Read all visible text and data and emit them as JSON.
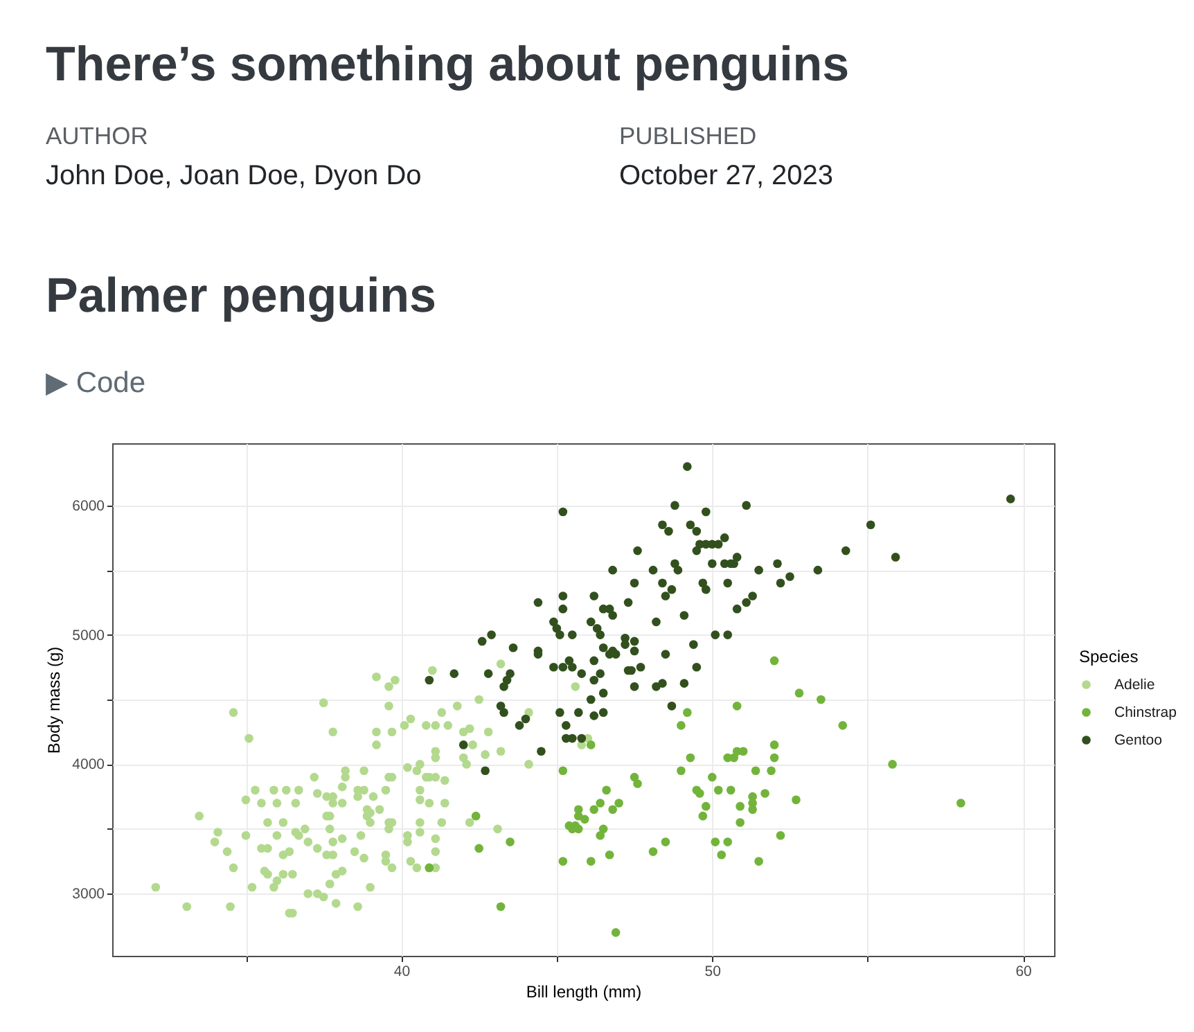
{
  "chart_data": {
    "type": "scatter",
    "title": "There’s something about penguins",
    "subtitle": "Palmer penguins",
    "annotations": [
      "AUTHOR",
      "John Doe, Joan Doe, Dyon Do",
      "PUBLISHED",
      "October 27, 2023",
      "▶ Code"
    ],
    "xlabel": "Bill length (mm)",
    "ylabel": "Body mass (g)",
    "legend_title": "Species",
    "legend": "right",
    "grid": true,
    "marker": "circle",
    "xlim": [
      30.7,
      61.0
    ],
    "ylim": [
      2520,
      6480
    ],
    "xticks": [
      {
        "value": 35,
        "label": null
      },
      40,
      {
        "value": 45,
        "label": null
      },
      50,
      {
        "value": 55,
        "label": null
      },
      60
    ],
    "yticks": [
      3000,
      {
        "value": 3500,
        "label": null
      },
      4000,
      {
        "value": 4500,
        "label": null
      },
      5000,
      {
        "value": 5500,
        "label": null
      },
      6000
    ],
    "series": [
      {
        "name": "Adelie",
        "color": "#b3d98e",
        "x": [
          32.1,
          33.1,
          34.5,
          33.5,
          34.1,
          34.0,
          34.4,
          34.6,
          34.6,
          35.1,
          35.0,
          35.0,
          35.2,
          35.3,
          35.5,
          35.9,
          36.0,
          36.3,
          36.6,
          36.7,
          35.7,
          36.2,
          35.5,
          35.7,
          36.0,
          36.2,
          36.4,
          35.6,
          35.7,
          36.0,
          35.9,
          36.2,
          36.5,
          36.4,
          36.5,
          36.6,
          36.7,
          36.9,
          37.0,
          37.2,
          37.3,
          37.3,
          37.0,
          37.3,
          37.5,
          37.5,
          37.8,
          37.6,
          37.8,
          37.8,
          37.6,
          37.7,
          37.7,
          37.8,
          37.6,
          37.8,
          38.1,
          38.1,
          38.2,
          38.2,
          38.1,
          37.9,
          38.1,
          37.7,
          37.9,
          38.6,
          38.6,
          38.8,
          38.8,
          38.7,
          38.5,
          38.8,
          38.6,
          39.0,
          39.1,
          38.9,
          39.0,
          38.9,
          39.0,
          39.3,
          39.5,
          39.6,
          39.7,
          39.6,
          39.7,
          39.6,
          39.5,
          39.5,
          39.7,
          39.2,
          39.6,
          39.8,
          39.6,
          39.2,
          39.2,
          39.7,
          40.1,
          40.3,
          40.2,
          40.5,
          40.6,
          40.2,
          40.2,
          40.3,
          40.5,
          40.6,
          40.6,
          40.6,
          40.6,
          41.3,
          41.8,
          42.5,
          40.8,
          41.1,
          41.5,
          42.0,
          42.2,
          42.8,
          42.3,
          41.1,
          41.1,
          42.0,
          42.1,
          42.7,
          43.2,
          44.1,
          44.1,
          45.6,
          45.8,
          46.0,
          40.8,
          40.9,
          41.1,
          41.4,
          40.9,
          41.4,
          41.3,
          41.1,
          41.1,
          42.2,
          43.1,
          40.9,
          41.1,
          41.0,
          43.2
        ],
        "values": [
          3050,
          2900,
          2900,
          3600,
          3475,
          3400,
          3325,
          3200,
          4400,
          4200,
          3725,
          3450,
          3050,
          3800,
          3700,
          3800,
          3700,
          3800,
          3700,
          3800,
          3550,
          3550,
          3350,
          3350,
          3450,
          3300,
          3325,
          3175,
          3150,
          3100,
          3050,
          3150,
          3150,
          2850,
          2850,
          3475,
          3450,
          3500,
          3400,
          3900,
          3775,
          3350,
          3000,
          3000,
          2975,
          4475,
          4250,
          3750,
          3750,
          3700,
          3600,
          3600,
          3500,
          3400,
          3300,
          3300,
          3825,
          3700,
          3950,
          3900,
          3425,
          3150,
          3175,
          3075,
          2925,
          3800,
          3750,
          3800,
          3950,
          3450,
          3325,
          3275,
          2900,
          3050,
          3750,
          3650,
          3625,
          3600,
          3550,
          3650,
          3800,
          3900,
          3900,
          3550,
          3550,
          3500,
          3300,
          3250,
          3200,
          4675,
          4600,
          4650,
          4450,
          4250,
          4150,
          4250,
          4300,
          4350,
          3975,
          3950,
          4000,
          3450,
          3400,
          3250,
          3200,
          3800,
          3725,
          3550,
          3475,
          4400,
          4450,
          4500,
          4300,
          4300,
          4300,
          4250,
          4275,
          4250,
          4150,
          4100,
          4050,
          4050,
          4000,
          4075,
          4100,
          4400,
          4000,
          4600,
          4150,
          4200,
          3900,
          3900,
          3900,
          3875,
          3700,
          3700,
          3550,
          3425,
          3325,
          3550,
          3500,
          3200,
          3200,
          4725,
          4775
        ]
      },
      {
        "name": "Chinstrap",
        "color": "#72b43b",
        "x": [
          40.9,
          42.4,
          42.5,
          43.5,
          43.2,
          45.2,
          45.2,
          45.4,
          45.5,
          45.6,
          45.7,
          45.7,
          45.7,
          45.9,
          46.1,
          46.2,
          46.4,
          46.5,
          46.4,
          46.6,
          46.7,
          46.8,
          47.0,
          46.9,
          47.5,
          47.6,
          48.1,
          48.5,
          49.0,
          49.2,
          49.0,
          49.3,
          49.5,
          49.6,
          49.8,
          49.7,
          50.0,
          50.1,
          50.2,
          46.1,
          52.0,
          52.8,
          53.5,
          50.8,
          54.2,
          55.8,
          58.0,
          52.0,
          52.0,
          50.5,
          50.7,
          50.8,
          51.0,
          51.4,
          51.9,
          50.6,
          51.7,
          51.3,
          51.3,
          51.3,
          50.9,
          52.7,
          50.9,
          50.5,
          50.3,
          52.2,
          51.5
        ],
        "values": [
          3200,
          3600,
          3350,
          3400,
          2900,
          3950,
          3250,
          3525,
          3500,
          3525,
          3500,
          3650,
          3600,
          3575,
          3250,
          3650,
          3700,
          3500,
          3450,
          3800,
          3300,
          3650,
          3700,
          2700,
          3900,
          3850,
          3325,
          3400,
          4300,
          4400,
          3950,
          4050,
          3800,
          3775,
          3675,
          3600,
          3900,
          3400,
          3800,
          4150,
          4800,
          4550,
          4500,
          4450,
          4300,
          4000,
          3700,
          4150,
          4050,
          4050,
          4050,
          4100,
          4100,
          3950,
          3950,
          3800,
          3775,
          3750,
          3700,
          3650,
          3675,
          3725,
          3550,
          3400,
          3300,
          3450,
          3250
        ]
      },
      {
        "name": "Gentoo",
        "color": "#32501d",
        "x": [
          43.2,
          43.3,
          44.0,
          43.8,
          42.0,
          42.7,
          44.5,
          45.1,
          45.3,
          45.7,
          46.1,
          46.2,
          46.5,
          46.5,
          45.3,
          45.5,
          45.8,
          47.5,
          48.2,
          48.4,
          48.7,
          49.1,
          49.2,
          45.2,
          48.8,
          49.8,
          48.4,
          48.6,
          49.3,
          49.5,
          49.5,
          49.6,
          49.8,
          50.0,
          50.2,
          47.6,
          48.8,
          48.9,
          50.0,
          48.1,
          46.8,
          47.5,
          48.4,
          48.7,
          48.5,
          49.7,
          49.8,
          44.4,
          45.2,
          45.2,
          46.2,
          46.5,
          46.7,
          46.8,
          47.3,
          48.2,
          49.1,
          44.9,
          45.0,
          45.1,
          45.5,
          46.1,
          46.3,
          46.4,
          47.2,
          47.5,
          47.2,
          46.5,
          46.7,
          46.8,
          46.9,
          47.5,
          48.5,
          49.4,
          50.1,
          42.6,
          42.9,
          43.6,
          44.4,
          44.4,
          44.9,
          45.2,
          45.4,
          45.5,
          45.8,
          46.2,
          46.4,
          46.2,
          47.3,
          47.4,
          47.7,
          49.5,
          41.7,
          42.8,
          43.5,
          43.4,
          43.3,
          40.9,
          51.1,
          59.6,
          55.1,
          54.3,
          55.9,
          50.4,
          50.4,
          50.6,
          50.7,
          50.8,
          51.5,
          52.1,
          52.5,
          52.2,
          53.4,
          50.5,
          51.3,
          51.1,
          50.8,
          50.5
        ],
        "values": [
          4450,
          4400,
          4350,
          4300,
          4150,
          3950,
          4100,
          4400,
          4300,
          4400,
          4500,
          4375,
          4550,
          4400,
          4200,
          4200,
          4200,
          4600,
          4600,
          4625,
          4450,
          4625,
          6300,
          5950,
          6000,
          5950,
          5850,
          5800,
          5850,
          5800,
          5650,
          5700,
          5700,
          5700,
          5700,
          5650,
          5550,
          5500,
          5550,
          5500,
          5500,
          5400,
          5400,
          5350,
          5300,
          5400,
          5350,
          5250,
          5300,
          5200,
          5300,
          5200,
          5200,
          5150,
          5250,
          5100,
          5150,
          5100,
          5050,
          5000,
          5000,
          5100,
          5050,
          5000,
          4975,
          4950,
          4925,
          4900,
          4850,
          4875,
          4850,
          4875,
          4850,
          4925,
          5000,
          4950,
          5000,
          4900,
          4875,
          4850,
          4750,
          4750,
          4800,
          4750,
          4700,
          4800,
          4700,
          4650,
          4725,
          4725,
          4750,
          4750,
          4700,
          4700,
          4700,
          4650,
          4600,
          4650,
          6000,
          6050,
          5850,
          5650,
          5600,
          5750,
          5550,
          5550,
          5550,
          5600,
          5500,
          5550,
          5450,
          5400,
          5500,
          5400,
          5300,
          5250,
          5200,
          5000
        ]
      }
    ]
  }
}
